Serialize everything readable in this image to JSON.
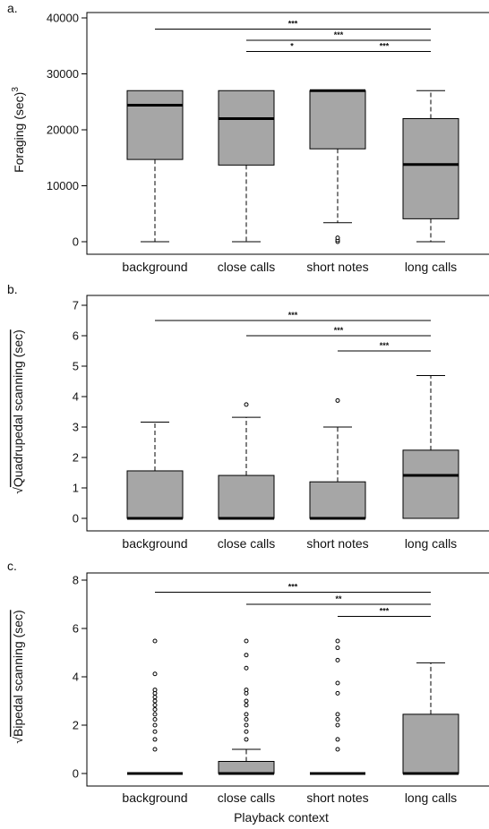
{
  "xlabel": "Playback context",
  "chart_data": [
    {
      "type": "boxplot",
      "panel_label": "a.",
      "ylabel": "Foraging (sec)",
      "ylabel_superscript": "3",
      "ylabel_sqrt": false,
      "ylim": [
        0,
        40000
      ],
      "yticks": [
        0,
        10000,
        20000,
        30000,
        40000
      ],
      "categories": [
        "background",
        "close calls",
        "short notes",
        "long calls"
      ],
      "boxes": [
        {
          "min": 0,
          "q1": 14700,
          "median": 24400,
          "q3": 27000,
          "max": 27000,
          "outliers": []
        },
        {
          "min": 0,
          "q1": 13700,
          "median": 22000,
          "q3": 27000,
          "max": 27000,
          "outliers": []
        },
        {
          "min": 3400,
          "q1": 16600,
          "median": 27000,
          "q3": 27000,
          "max": 27000,
          "outliers": [
            0,
            300,
            700
          ]
        },
        {
          "min": 0,
          "q1": 4100,
          "median": 13800,
          "q3": 22000,
          "max": 27000,
          "outliers": []
        }
      ],
      "significance": [
        {
          "from": 0,
          "to": 3,
          "y": 38000,
          "label": "***"
        },
        {
          "from": 1,
          "to": 3,
          "y": 36000,
          "label": "***"
        },
        {
          "from": 1,
          "to": 2,
          "y": 34000,
          "label": "*"
        },
        {
          "from": 2,
          "to": 3,
          "y": 34000,
          "label": "***"
        }
      ]
    },
    {
      "type": "boxplot",
      "panel_label": "b.",
      "ylabel": "Quadrupedal scanning (sec)",
      "ylabel_superscript": "",
      "ylabel_sqrt": true,
      "ylim": [
        0,
        7
      ],
      "yticks": [
        0,
        1,
        2,
        3,
        4,
        5,
        6,
        7
      ],
      "categories": [
        "background",
        "close calls",
        "short notes",
        "long calls"
      ],
      "boxes": [
        {
          "min": 0,
          "q1": 0,
          "median": 0,
          "q3": 1.56,
          "max": 3.16,
          "outliers": []
        },
        {
          "min": 0,
          "q1": 0,
          "median": 0,
          "q3": 1.41,
          "max": 3.32,
          "outliers": [
            3.74
          ]
        },
        {
          "min": 0,
          "q1": 0,
          "median": 0,
          "q3": 1.2,
          "max": 3.0,
          "outliers": [
            3.87
          ]
        },
        {
          "min": 0,
          "q1": 0,
          "median": 1.41,
          "q3": 2.24,
          "max": 4.69,
          "outliers": []
        }
      ],
      "significance": [
        {
          "from": 0,
          "to": 3,
          "y": 6.5,
          "label": "***"
        },
        {
          "from": 1,
          "to": 3,
          "y": 6.0,
          "label": "***"
        },
        {
          "from": 2,
          "to": 3,
          "y": 5.5,
          "label": "***"
        }
      ]
    },
    {
      "type": "boxplot",
      "panel_label": "c.",
      "ylabel": "Bipedal scanning (sec)",
      "ylabel_superscript": "",
      "ylabel_sqrt": true,
      "ylim": [
        0,
        8
      ],
      "yticks": [
        0,
        2,
        4,
        6,
        8
      ],
      "categories": [
        "background",
        "close calls",
        "short notes",
        "long calls"
      ],
      "boxes": [
        {
          "min": 0,
          "q1": 0,
          "median": 0,
          "q3": 0,
          "max": 0,
          "outliers": [
            1.0,
            1.41,
            1.73,
            2.0,
            2.24,
            2.45,
            2.65,
            2.83,
            3.0,
            3.16,
            3.32,
            3.46,
            4.12,
            5.48
          ]
        },
        {
          "min": 0,
          "q1": 0,
          "median": 0,
          "q3": 0.5,
          "max": 1.0,
          "outliers": [
            1.41,
            1.73,
            2.0,
            2.24,
            2.45,
            2.83,
            3.0,
            3.32,
            3.46,
            4.36,
            4.9,
            5.48
          ]
        },
        {
          "min": 0,
          "q1": 0,
          "median": 0,
          "q3": 0,
          "max": 0,
          "outliers": [
            1.0,
            1.41,
            2.0,
            2.24,
            2.45,
            3.32,
            3.74,
            4.69,
            5.2,
            5.48
          ]
        },
        {
          "min": 0,
          "q1": 0,
          "median": 0,
          "q3": 2.45,
          "max": 4.58,
          "outliers": []
        }
      ],
      "significance": [
        {
          "from": 0,
          "to": 3,
          "y": 7.5,
          "label": "***"
        },
        {
          "from": 1,
          "to": 3,
          "y": 7.0,
          "label": "**"
        },
        {
          "from": 2,
          "to": 3,
          "y": 6.5,
          "label": "***"
        }
      ]
    }
  ],
  "colors": {
    "box_fill": "#a6a6a6",
    "stroke": "#000000"
  }
}
